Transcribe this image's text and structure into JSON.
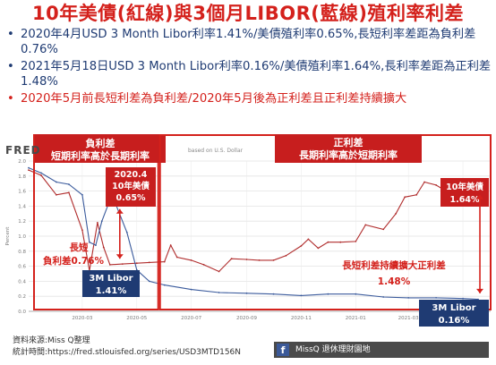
{
  "page": {
    "title": "10年美債(紅線)與3個月LIBOR(藍線)殖利率利差",
    "bullets": [
      {
        "text": "2020年4月USD 3 Month Libor利率1.41%/美債殖利率0.65%,長短利率差距為負利差0.76%",
        "color": "#1f3b73"
      },
      {
        "text": "2021年5月18日USD 3 Month Libor利率0.16%/美債殖利率1.64%,長利率差距為正利差1.48%",
        "color": "#1f3b73"
      },
      {
        "text": "2020年5月前長短利差為負利差/2020年5月後為正利差且正利差持續擴大",
        "color": "#d4211c"
      }
    ],
    "bullet_symbol": "•",
    "fred_logo": "FRED",
    "fred_note": "based on U.S. Dollar",
    "source_lines": [
      "資料來源:Miss Q整理",
      "統計時間:https://fred.stlouisfed.org/series/USD3MTD156N"
    ],
    "footer": {
      "icon": "f",
      "text": "MissQ 退休理財園地"
    }
  },
  "chart_data": {
    "type": "line",
    "ylabel": "Percent",
    "ylim": [
      0,
      2.0
    ],
    "yticks": [
      "0.0",
      "0.2",
      "0.4",
      "0.6",
      "0.8",
      "1.0",
      "1.2",
      "1.4",
      "1.6",
      "1.8",
      "2.0"
    ],
    "xlim": [
      "2020-01-01",
      "2021-06-01"
    ],
    "xticks": [
      "2020-03",
      "2020-05",
      "2020-07",
      "2020-09",
      "2020-11",
      "2021-01",
      "2021-03",
      "2021-05"
    ],
    "grid": true,
    "series": [
      {
        "name": "10年美債",
        "color": "#b02c2c",
        "points": [
          [
            "2020-01-01",
            1.88
          ],
          [
            "2020-01-15",
            1.81
          ],
          [
            "2020-02-01",
            1.55
          ],
          [
            "2020-02-15",
            1.58
          ],
          [
            "2020-03-01",
            1.08
          ],
          [
            "2020-03-09",
            0.54
          ],
          [
            "2020-03-18",
            1.18
          ],
          [
            "2020-03-25",
            0.85
          ],
          [
            "2020-04-01",
            0.62
          ],
          [
            "2020-04-15",
            0.63
          ],
          [
            "2020-05-01",
            0.64
          ],
          [
            "2020-05-15",
            0.65
          ],
          [
            "2020-06-01",
            0.66
          ],
          [
            "2020-06-08",
            0.88
          ],
          [
            "2020-06-15",
            0.72
          ],
          [
            "2020-07-01",
            0.68
          ],
          [
            "2020-07-15",
            0.62
          ],
          [
            "2020-08-01",
            0.53
          ],
          [
            "2020-08-15",
            0.7
          ],
          [
            "2020-09-01",
            0.69
          ],
          [
            "2020-09-15",
            0.68
          ],
          [
            "2020-10-01",
            0.68
          ],
          [
            "2020-10-15",
            0.74
          ],
          [
            "2020-11-01",
            0.87
          ],
          [
            "2020-11-09",
            0.96
          ],
          [
            "2020-11-20",
            0.84
          ],
          [
            "2020-12-01",
            0.92
          ],
          [
            "2020-12-15",
            0.92
          ],
          [
            "2021-01-01",
            0.93
          ],
          [
            "2021-01-12",
            1.15
          ],
          [
            "2021-02-01",
            1.09
          ],
          [
            "2021-02-15",
            1.3
          ],
          [
            "2021-02-25",
            1.52
          ],
          [
            "2021-03-10",
            1.55
          ],
          [
            "2021-03-19",
            1.72
          ],
          [
            "2021-04-01",
            1.68
          ],
          [
            "2021-04-15",
            1.58
          ],
          [
            "2021-05-01",
            1.62
          ],
          [
            "2021-05-18",
            1.64
          ]
        ]
      },
      {
        "name": "3M Libor",
        "color": "#3a5a9c",
        "points": [
          [
            "2020-01-01",
            1.91
          ],
          [
            "2020-01-15",
            1.84
          ],
          [
            "2020-02-01",
            1.72
          ],
          [
            "2020-02-15",
            1.69
          ],
          [
            "2020-03-01",
            1.55
          ],
          [
            "2020-03-09",
            0.92
          ],
          [
            "2020-03-16",
            0.88
          ],
          [
            "2020-03-23",
            1.2
          ],
          [
            "2020-03-31",
            1.45
          ],
          [
            "2020-04-08",
            1.41
          ],
          [
            "2020-04-20",
            1.05
          ],
          [
            "2020-05-01",
            0.55
          ],
          [
            "2020-05-15",
            0.4
          ],
          [
            "2020-06-01",
            0.35
          ],
          [
            "2020-07-01",
            0.29
          ],
          [
            "2020-08-01",
            0.25
          ],
          [
            "2020-09-01",
            0.24
          ],
          [
            "2020-10-01",
            0.23
          ],
          [
            "2020-11-01",
            0.21
          ],
          [
            "2020-12-01",
            0.23
          ],
          [
            "2021-01-01",
            0.23
          ],
          [
            "2021-02-01",
            0.19
          ],
          [
            "2021-03-01",
            0.18
          ],
          [
            "2021-04-01",
            0.18
          ],
          [
            "2021-05-01",
            0.17
          ],
          [
            "2021-05-18",
            0.16
          ]
        ]
      }
    ],
    "annotations": {
      "negative_box_title": "負利差",
      "negative_box_sub": "短期利率高於長期利率",
      "positive_box_title": "正利差",
      "positive_box_sub": "長期利率高於短期利率",
      "bond_2020_04": [
        "2020.4",
        "10年美債",
        "0.65%"
      ],
      "libor_2020_04": [
        "3M Libor",
        "1.41%"
      ],
      "neg_spread": [
        "長短",
        "負利差0.76%"
      ],
      "bond_2021_05": [
        "10年美債",
        "1.64%"
      ],
      "libor_2021_05": [
        "3M Libor",
        "0.16%"
      ],
      "pos_spread": [
        "長短利差持續擴大正利差",
        "1.48%"
      ]
    }
  }
}
